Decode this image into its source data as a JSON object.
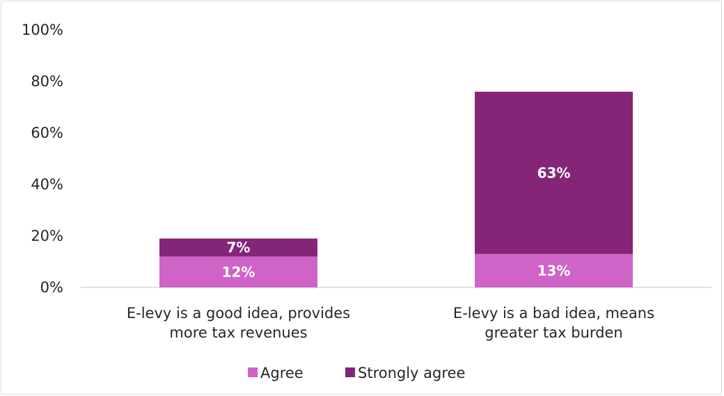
{
  "chart_data": {
    "type": "bar",
    "stacked": true,
    "title": "",
    "xlabel": "",
    "ylabel": "",
    "ylim": [
      0,
      100
    ],
    "yticks": [
      0,
      20,
      40,
      60,
      80,
      100
    ],
    "ytick_labels": [
      "0%",
      "20%",
      "40%",
      "60%",
      "80%",
      "100%"
    ],
    "grid": false,
    "legend_position": "bottom",
    "categories": [
      [
        "E-levy is a good idea, provides",
        "more tax revenues"
      ],
      [
        "E-levy is a bad idea, means",
        "greater tax burden"
      ]
    ],
    "series": [
      {
        "name": "Agree",
        "color": "#d063c8",
        "values": [
          12,
          13
        ],
        "labels": [
          "12%",
          "13%"
        ]
      },
      {
        "name": "Strongly agree",
        "color": "#842577",
        "values": [
          7,
          63
        ],
        "labels": [
          "7%",
          "63%"
        ]
      }
    ]
  }
}
